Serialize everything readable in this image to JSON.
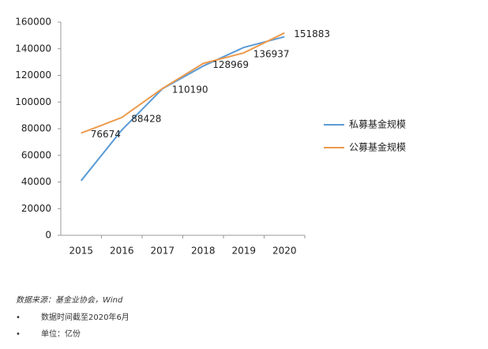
{
  "chart_data": {
    "type": "line",
    "categories": [
      "2015",
      "2016",
      "2017",
      "2018",
      "2019",
      "2020"
    ],
    "series": [
      {
        "name": "私募基金规模",
        "color": "#5b9bd5",
        "values": [
          41000,
          79000,
          110000,
          127000,
          141000,
          149000
        ]
      },
      {
        "name": "公募基金规模",
        "color": "#ed9a4c",
        "values": [
          76674,
          88428,
          110190,
          128969,
          136937,
          151883
        ],
        "show_labels": true
      }
    ],
    "ylim": [
      0,
      160000
    ],
    "yticks": [
      0,
      20000,
      40000,
      60000,
      80000,
      100000,
      120000,
      140000,
      160000
    ],
    "grid": false,
    "legend": "right"
  },
  "notes": {
    "source": "数据来源：基金业协会，Wind",
    "bullets": [
      "数据时间截至2020年6月",
      "单位：亿份"
    ]
  }
}
